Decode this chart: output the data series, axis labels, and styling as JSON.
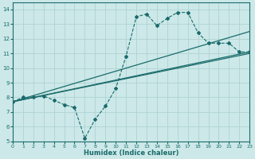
{
  "xlabel": "Humidex (Indice chaleur)",
  "xlim": [
    0,
    23
  ],
  "ylim": [
    5,
    14.5
  ],
  "yticks": [
    5,
    6,
    7,
    8,
    9,
    10,
    11,
    12,
    13,
    14
  ],
  "xticks": [
    0,
    1,
    2,
    3,
    4,
    5,
    6,
    7,
    8,
    9,
    10,
    11,
    12,
    13,
    14,
    15,
    16,
    17,
    18,
    19,
    20,
    21,
    22,
    23
  ],
  "bg_color": "#cce8e8",
  "grid_color": "#aacfcf",
  "line_color": "#1a6b6b",
  "line1_x": [
    0,
    1,
    2,
    3,
    4,
    5,
    6,
    7,
    8,
    9,
    10,
    11,
    12,
    13,
    14,
    15,
    16,
    17,
    18,
    19,
    20,
    21,
    22,
    23
  ],
  "line1_y": [
    7.7,
    8.0,
    8.0,
    8.1,
    7.8,
    7.5,
    7.3,
    5.2,
    6.5,
    7.4,
    8.6,
    10.8,
    13.5,
    13.7,
    12.9,
    13.4,
    13.8,
    13.8,
    12.4,
    11.7,
    11.7,
    11.7,
    11.1,
    11.1
  ],
  "line2_x": [
    0,
    23
  ],
  "line2_y": [
    7.7,
    11.1
  ],
  "line3_x": [
    0,
    23
  ],
  "line3_y": [
    7.7,
    11.0
  ],
  "line4_x": [
    0,
    23
  ],
  "line4_y": [
    7.7,
    12.5
  ]
}
